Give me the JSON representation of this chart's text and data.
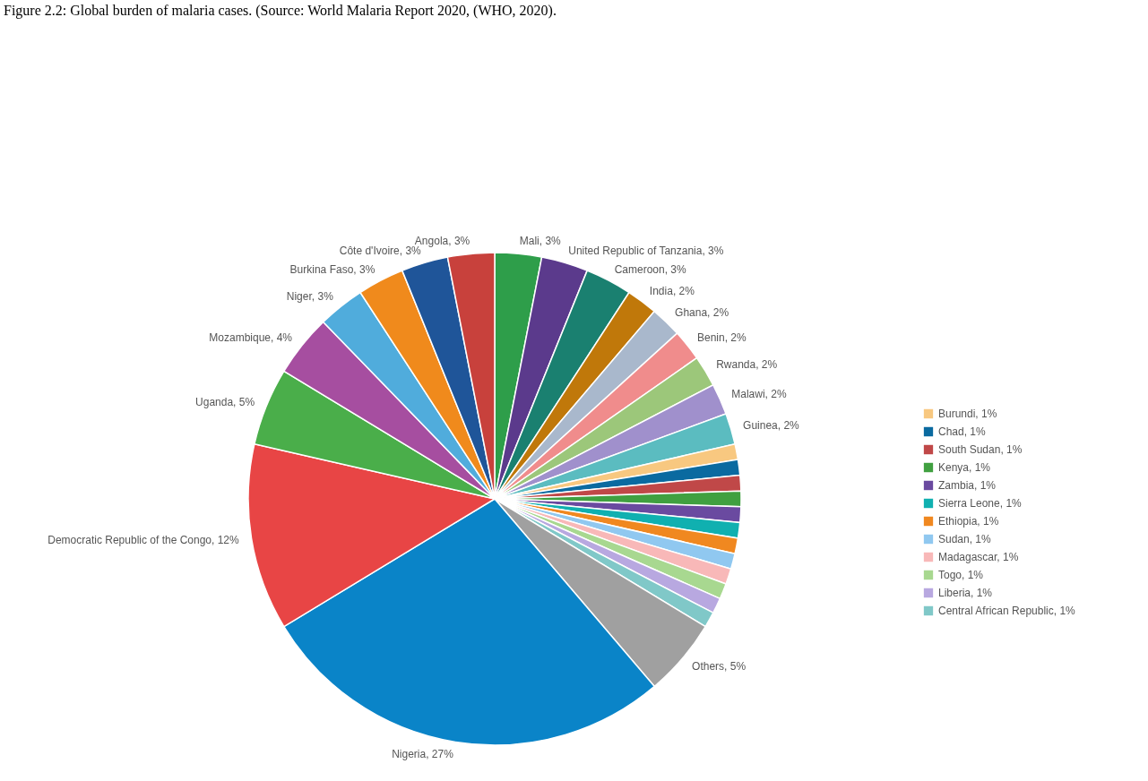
{
  "chart_data": {
    "type": "pie",
    "title": "Figure 2.2: Global burden of malaria cases. (Source: World Malaria Report 2020, (WHO, 2020).",
    "categories": [
      "Mali, 3%",
      "United Republic of Tanzania, 3%",
      "Cameroon, 3%",
      "India, 2%",
      "Ghana, 2%",
      "Benin, 2%",
      "Rwanda, 2%",
      "Malawi, 2%",
      "Guinea, 2%",
      "Burundi, 1%",
      "Chad, 1%",
      "South Sudan, 1%",
      "Kenya, 1%",
      "Zambia, 1%",
      "Sierra Leone, 1%",
      "Ethiopia, 1%",
      "Sudan, 1%",
      "Madagascar, 1%",
      "Togo, 1%",
      "Liberia, 1%",
      "Central African Republic, 1%",
      "Others, 5%",
      "Nigeria, 27%",
      "Democratic Republic of the Congo, 12%",
      "Uganda, 5%",
      "Mozambique, 4%",
      "Niger, 3%",
      "Burkina Faso, 3%",
      "Côte d'Ivoire, 3%",
      "Angola, 3%"
    ],
    "values": [
      3,
      3,
      3,
      2,
      2,
      2,
      2,
      2,
      2,
      1,
      1,
      1,
      1,
      1,
      1,
      1,
      1,
      1,
      1,
      1,
      1,
      5,
      27,
      12,
      5,
      4,
      3,
      3,
      3,
      3
    ],
    "colors": [
      "#2e9e4a",
      "#5b3a8c",
      "#1a8070",
      "#c0780a",
      "#a9b8cc",
      "#f08c8c",
      "#9cc77a",
      "#a090cc",
      "#5bbcc0",
      "#f8c880",
      "#0a6aa0",
      "#c04848",
      "#40a040",
      "#6a4aa0",
      "#10b0b0",
      "#f08820",
      "#90c8f0",
      "#f8b8b8",
      "#a8d890",
      "#b8a8e0",
      "#80c8c8",
      "#a0a0a0",
      "#0a84c8",
      "#e84545",
      "#4aae4a",
      "#a64ea0",
      "#50acdc",
      "#f08a1c",
      "#1f5599",
      "#c8413c"
    ],
    "legend": "right"
  }
}
